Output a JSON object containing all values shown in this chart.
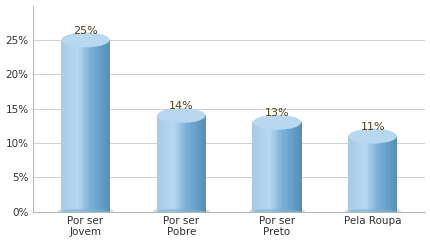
{
  "categories": [
    "Por ser\nJovem",
    "Por ser\nPobre",
    "Por ser\nPreto",
    "Pela Roupa"
  ],
  "values": [
    25,
    14,
    13,
    11
  ],
  "labels": [
    "25%",
    "14%",
    "13%",
    "11%"
  ],
  "bar_color_main": "#7ab2d8",
  "bar_color_light": "#a8cce8",
  "bar_color_dark": "#5590b8",
  "bar_top_color": "#b8d8f0",
  "bar_shadow_color": "#c0c8d0",
  "ylim": [
    0,
    30
  ],
  "yticks": [
    0,
    5,
    10,
    15,
    20,
    25
  ],
  "ytick_labels": [
    "0%",
    "5%",
    "10%",
    "15%",
    "20%",
    "25%"
  ],
  "background_color": "#ffffff",
  "grid_color": "#c8c8c8",
  "label_fontsize": 8,
  "tick_fontsize": 7.5,
  "bar_width": 0.5,
  "bar_gap": 0.3
}
